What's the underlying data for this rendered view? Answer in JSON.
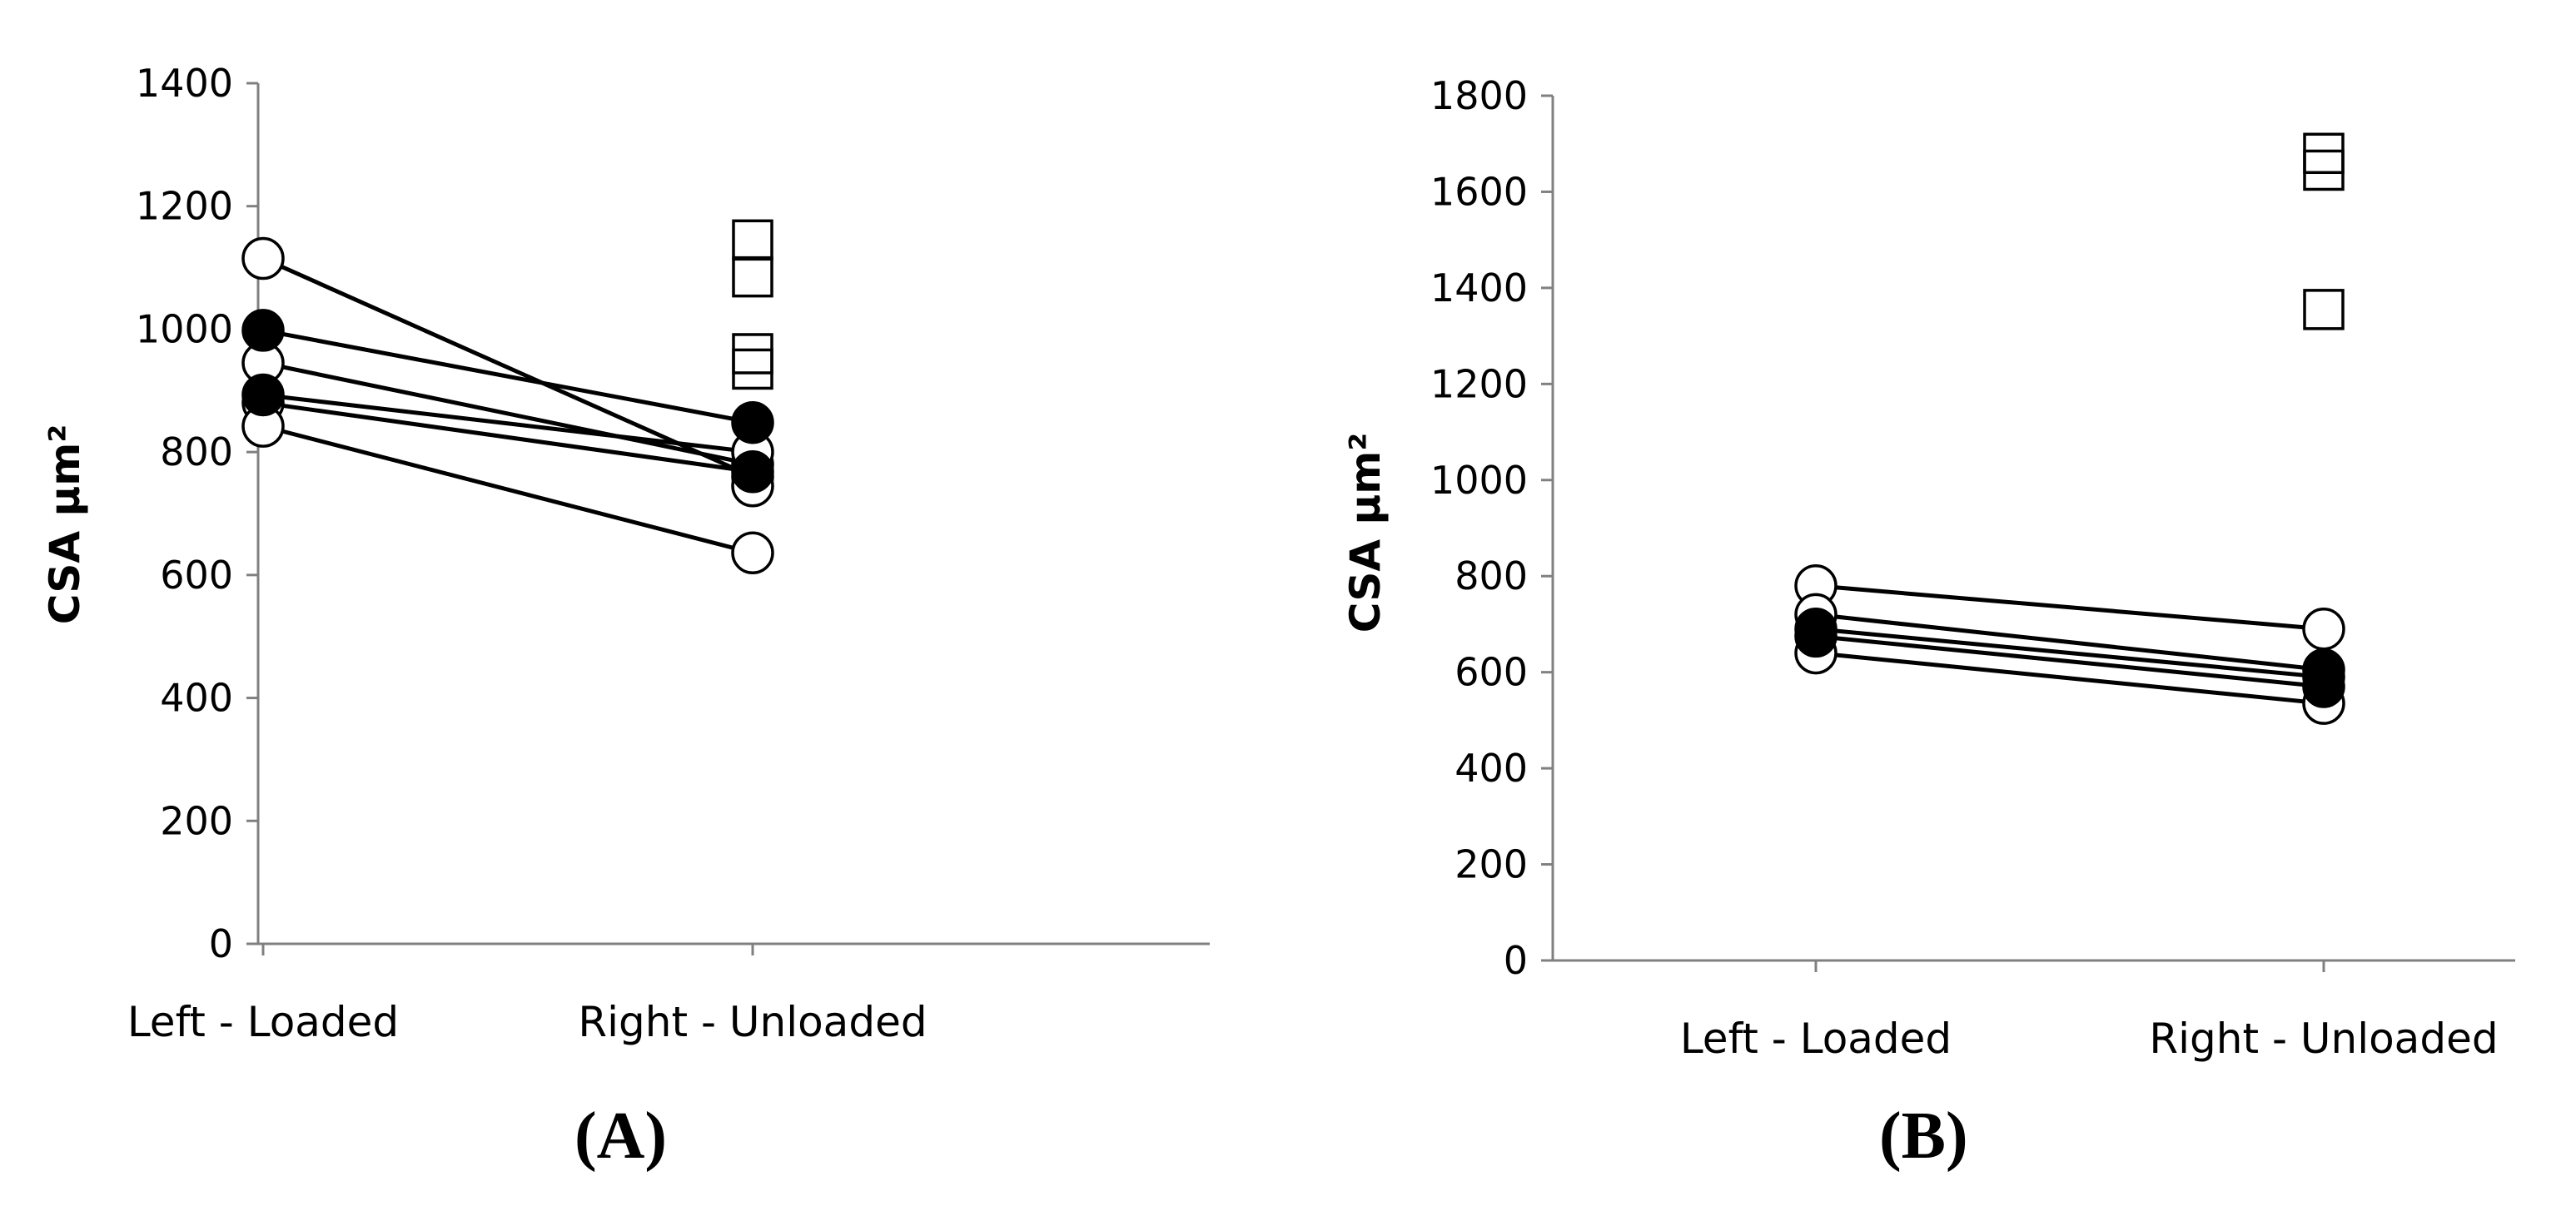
{
  "chart_data": [
    {
      "panel_label": "(A)",
      "type": "scatter",
      "ylabel": "CSA μm²",
      "ylim": [
        0,
        1400
      ],
      "yticks": [
        "0",
        "200",
        "400",
        "600",
        "800",
        "1000",
        "1200",
        "1400"
      ],
      "categories": [
        "Left - Loaded",
        "Right - Unloaded"
      ],
      "paired_lines": [
        {
          "values": [
            1115,
            760
          ],
          "left_marker": "open-circle",
          "right_marker": "open-circle"
        },
        {
          "values": [
            998,
            848
          ],
          "left_marker": "filled-circle",
          "right_marker": "filled-circle"
        },
        {
          "values": [
            945,
            780
          ],
          "left_marker": "open-circle",
          "right_marker": "open-circle"
        },
        {
          "values": [
            893,
            800
          ],
          "left_marker": "filled-circle",
          "right_marker": "open-circle"
        },
        {
          "values": [
            880,
            768
          ],
          "left_marker": "open-circle",
          "right_marker": "filled-circle"
        },
        {
          "values": [
            842,
            636
          ],
          "left_marker": "open-circle",
          "right_marker": "open-circle"
        }
      ],
      "extra_points": [
        {
          "category": "Right - Unloaded",
          "value": 745,
          "marker": "open-circle"
        },
        {
          "category": "Right - Unloaded",
          "value": 1145,
          "marker": "open-square"
        },
        {
          "category": "Right - Unloaded",
          "value": 1085,
          "marker": "open-square"
        },
        {
          "category": "Right - Unloaded",
          "value": 960,
          "marker": "open-square"
        },
        {
          "category": "Right - Unloaded",
          "value": 935,
          "marker": "open-square"
        }
      ]
    },
    {
      "panel_label": "(B)",
      "type": "scatter",
      "ylabel": "CSA μm²",
      "ylim": [
        0,
        1800
      ],
      "yticks": [
        "0",
        "200",
        "400",
        "600",
        "800",
        "1000",
        "1200",
        "1400",
        "1600",
        "1800"
      ],
      "categories": [
        "Left - Loaded",
        "Right - Unloaded"
      ],
      "paired_lines": [
        {
          "values": [
            780,
            690
          ],
          "left_marker": "open-circle",
          "right_marker": "open-circle"
        },
        {
          "values": [
            720,
            605
          ],
          "left_marker": "open-circle",
          "right_marker": "filled-circle"
        },
        {
          "values": [
            690,
            590
          ],
          "left_marker": "filled-circle",
          "right_marker": "filled-circle"
        },
        {
          "values": [
            675,
            570
          ],
          "left_marker": "filled-circle",
          "right_marker": "filled-circle"
        },
        {
          "values": [
            640,
            535
          ],
          "left_marker": "open-circle",
          "right_marker": "open-circle"
        }
      ],
      "extra_points": [
        {
          "category": "Right - Unloaded",
          "value": 1680,
          "marker": "open-square"
        },
        {
          "category": "Right - Unloaded",
          "value": 1645,
          "marker": "open-square"
        },
        {
          "category": "Right - Unloaded",
          "value": 1355,
          "marker": "open-square"
        }
      ]
    }
  ]
}
